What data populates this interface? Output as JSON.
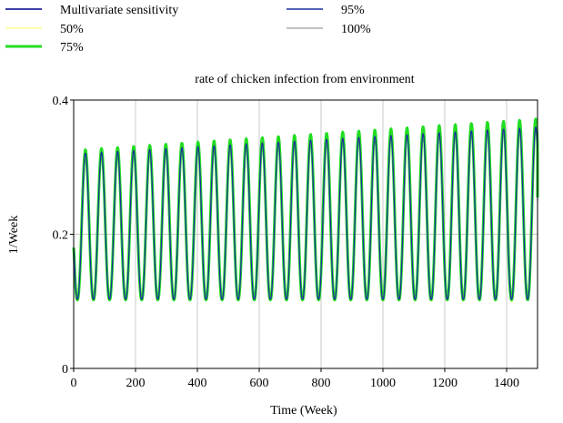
{
  "chart_data": {
    "type": "line",
    "title": "rate of chicken infection from environment",
    "xlabel": "Time (Week)",
    "ylabel": "1/Week",
    "xlim": [
      0,
      1500
    ],
    "ylim": [
      0,
      0.4
    ],
    "x_ticks": [
      "0",
      "200",
      "400",
      "600",
      "800",
      "1000",
      "1200",
      "1400"
    ],
    "y_ticks": [
      "0",
      "0.2",
      "0.4"
    ],
    "grid": true,
    "legend_position": "top",
    "legend_title": "Multivariate sensitivity",
    "legend_title_color": "#00008b",
    "series": [
      {
        "name": "50%",
        "color": "#ffff55",
        "width": 1,
        "x": [
          0,
          10,
          22,
          36,
          1500
        ],
        "values": [
          0.18,
          0.11,
          0.1,
          0.32,
          0.25
        ],
        "note_period_weeks": 52
      },
      {
        "name": "75%",
        "color": "#22dd22",
        "width": 3,
        "period_weeks": 52,
        "peak_start": 0.325,
        "peak_end": 0.372,
        "trough": 0.102,
        "end_value": 0.255
      },
      {
        "name": "95%",
        "color": "#1a2fa0",
        "width": 1.2,
        "period_weeks": 52,
        "peak_start": 0.32,
        "peak_end": 0.36,
        "trough": 0.103,
        "end_value": 0.25
      },
      {
        "name": "100%",
        "color": "#808080",
        "width": 1,
        "period_weeks": 52,
        "peak_start": 0.32,
        "peak_end": 0.358,
        "trough": 0.103,
        "end_value": 0.25
      }
    ]
  }
}
